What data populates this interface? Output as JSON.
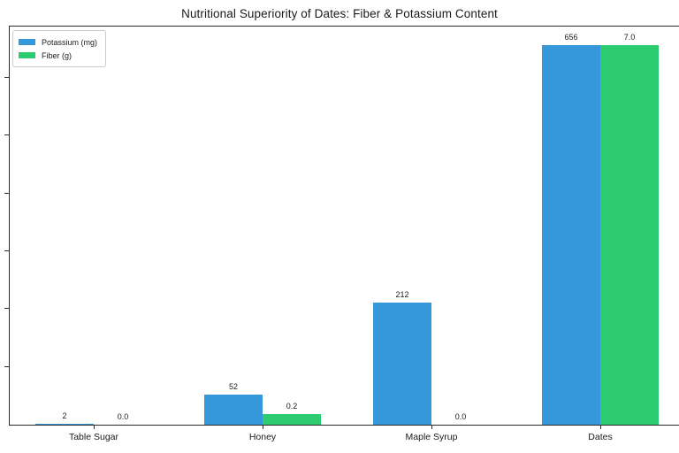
{
  "title": "Nutritional Superiority of Dates: Fiber & Potassium Content",
  "legend": {
    "position": "upper left",
    "items": [
      {
        "label": "Potassium (mg)",
        "color": "#3498db"
      },
      {
        "label": "Fiber (g)",
        "color": "#2ecc71"
      }
    ]
  },
  "chart_data": {
    "type": "bar",
    "title": "Nutritional Superiority of Dates: Fiber & Potassium Content",
    "xlabel": "",
    "ylabel": "",
    "categories": [
      "Table Sugar",
      "Honey",
      "Maple Syrup",
      "Dates"
    ],
    "series": [
      {
        "name": "Potassium (mg)",
        "color": "#3498db",
        "axis": "left",
        "values": [
          2,
          52,
          212,
          656
        ],
        "value_labels": [
          "2",
          "52",
          "212",
          "656"
        ]
      },
      {
        "name": "Fiber (g)",
        "color": "#2ecc71",
        "axis": "right",
        "values": [
          0.0,
          0.2,
          0.0,
          7.0
        ],
        "value_labels": [
          "0.0",
          "0.2",
          "0.0",
          "7.0"
        ]
      }
    ],
    "left_axis": {
      "range": [
        0,
        688.8
      ],
      "tick_interval": 100,
      "tick_labels_visible": false
    },
    "right_axis": {
      "range": [
        0,
        7.35
      ],
      "tick_labels_visible": false
    },
    "grid": false,
    "legend_position": "upper left",
    "bar_value_labels_visible": true
  },
  "colors": {
    "potassium_bar": "#3498db",
    "fiber_bar": "#2ecc71",
    "spine": "#2b2b2b",
    "text": "#1a1a1a",
    "legend_border": "#cccccc",
    "background": "#ffffff"
  }
}
